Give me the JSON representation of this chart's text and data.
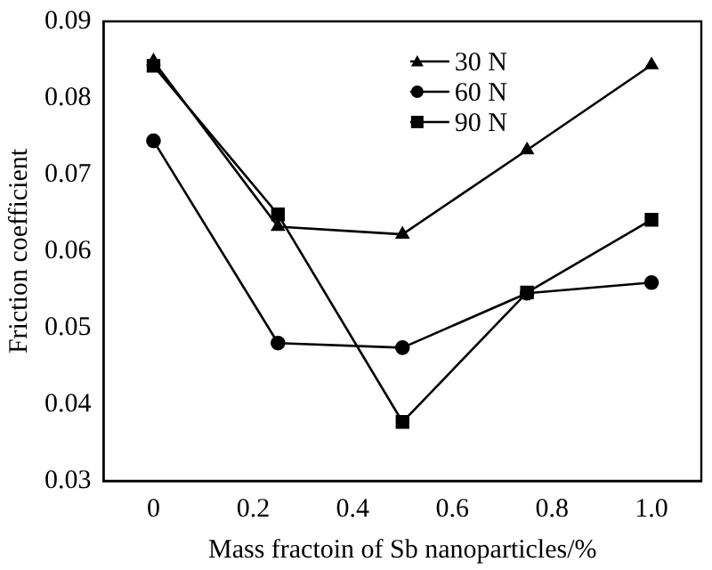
{
  "chart_data": {
    "type": "line",
    "xlabel": "Mass fractoin of Sb nanoparticles/%",
    "ylabel": "Friction coefficient",
    "x": [
      0,
      0.25,
      0.5,
      0.75,
      1.0
    ],
    "series": [
      {
        "name": "30 N",
        "color": "#000000",
        "marker": "triangle",
        "values": [
          0.0848,
          0.0632,
          0.0622,
          0.0732,
          0.0843
        ]
      },
      {
        "name": "60 N",
        "color": "#000000",
        "marker": "circle",
        "values": [
          0.0744,
          0.048,
          0.0474,
          0.0545,
          0.0559
        ]
      },
      {
        "name": "90 N",
        "color": "#000000",
        "marker": "square",
        "values": [
          0.0842,
          0.0648,
          0.0377,
          0.0546,
          0.0641
        ]
      }
    ],
    "xlim": [
      -0.1,
      1.1
    ],
    "xticks": [
      {
        "value": 0,
        "label": "0"
      },
      0.2,
      0.4,
      0.6,
      0.8,
      {
        "value": 1.0,
        "label": "1.0"
      }
    ],
    "ylim": [
      0.03,
      0.09
    ],
    "yticks": [
      0.03,
      0.04,
      0.05,
      0.06,
      0.07,
      0.08,
      0.09
    ],
    "grid": false,
    "legend": "top right",
    "line_style": "solid"
  }
}
